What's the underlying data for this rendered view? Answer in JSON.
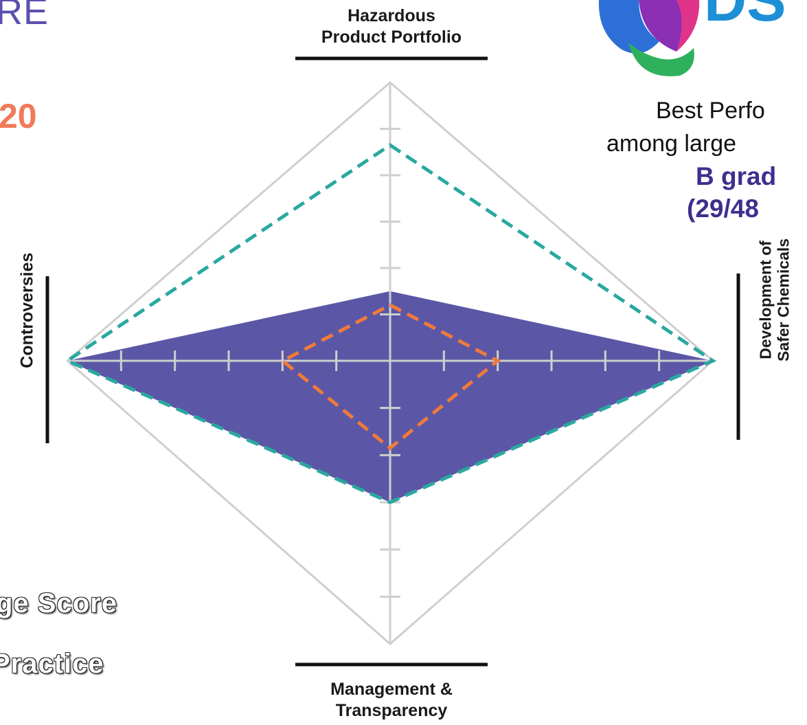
{
  "header": {
    "partial_title": "RE",
    "partial_year": "20"
  },
  "logo": {
    "partial_text": "DS",
    "colors": [
      "#2d6fd6",
      "#8b2fb5",
      "#e0338a",
      "#2fb05c",
      "#1d8fd6"
    ]
  },
  "right_panel": {
    "line1": "Best Perfo",
    "line2": "among large",
    "grade_line1": "B grad",
    "grade_line2": "(29/48"
  },
  "legend": {
    "item1": "ge Score",
    "item2": "Practice"
  },
  "colors": {
    "company_fill": "#5b57a6",
    "average_line": "#f07a3c",
    "best_line": "#2aa8a0",
    "frame": "#cfcfcf",
    "label_bar": "#111111"
  },
  "chart_data": {
    "type": "radar",
    "axes": [
      {
        "key": "top",
        "label_lines": [
          "Hazardous",
          "Product Portfolio"
        ]
      },
      {
        "key": "right",
        "label_lines": [
          "Development of",
          "Safer Chemicals"
        ]
      },
      {
        "key": "bottom",
        "label_lines": [
          "Management &",
          "Transparency"
        ]
      },
      {
        "key": "left",
        "label_lines": [
          "Controversies"
        ]
      }
    ],
    "ticks_per_axis": 6,
    "max_value": 6,
    "series": [
      {
        "style": "filled",
        "color": "#5b57a6",
        "values": {
          "top": 1.5,
          "right": 6.0,
          "bottom": 3.0,
          "left": 6.0
        }
      },
      {
        "style": "dashed",
        "color": "#2aa8a0",
        "values": {
          "top": 4.65,
          "right": 6.0,
          "bottom": 3.0,
          "left": 6.0
        }
      },
      {
        "style": "dashed",
        "color": "#f07a3c",
        "values": {
          "top": 1.2,
          "right": 2.0,
          "bottom": 1.85,
          "left": 2.0
        }
      }
    ]
  }
}
